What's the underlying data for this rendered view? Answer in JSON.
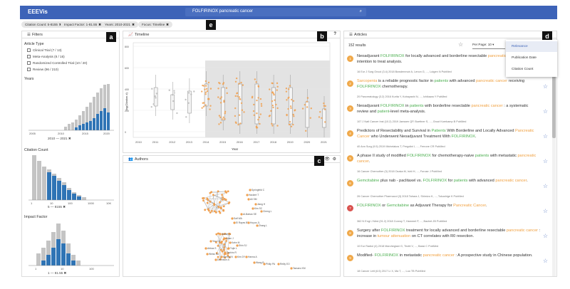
{
  "app": {
    "title": "EEEVis"
  },
  "search": {
    "query": "FOLFIRINOX pancreatic cancer"
  },
  "chips": [
    {
      "label": "Citation Count: 5-8155"
    },
    {
      "label": "Impact Factor: 1-81.55"
    },
    {
      "label": "Years: 2010-2021"
    },
    {
      "label": "Focus: Timeline"
    }
  ],
  "markers": {
    "a": "a",
    "b": "b",
    "c": "c",
    "d": "d",
    "e": "e"
  },
  "filters": {
    "title": "Filters",
    "article_type": "Article Type",
    "types": [
      "Clinical Trial (7 / 13)",
      "Meta-Analysis (8 / 16)",
      "Randomized Controlled Trial (10 / 20)",
      "Review (96 / 210)"
    ],
    "years": "Years",
    "years_axis": [
      "2005",
      "2010",
      "2015",
      "2020"
    ],
    "years_range": {
      "from": "2010",
      "to": "2021"
    },
    "citation": "Citation Count",
    "citation_axis": [
      "1",
      "10",
      "100",
      "1000",
      "10K"
    ],
    "citation_range": {
      "from": "5",
      "to": "8155"
    },
    "impact": "Impact Factor",
    "impact_axis": [
      "1",
      "10",
      "100"
    ],
    "impact_range": {
      "from": "1",
      "to": "81.55"
    }
  },
  "timeline": {
    "title": "Timeline",
    "help": "?",
    "ylabel": "log(Citation #)",
    "xlabel": "Year",
    "years": [
      "2010",
      "2011",
      "2012",
      "2013",
      "2014",
      "2015",
      "2016",
      "2017",
      "2018",
      "2019",
      "2020",
      "2021"
    ],
    "yticks": [
      "800",
      "600",
      "400",
      "200",
      "0"
    ]
  },
  "authors": {
    "title": "Authors",
    "nodes": [
      "Springfeld C",
      "Hackert T",
      "Ali SM",
      "Jiang H",
      "Kim SC",
      "Cheng L",
      "Al-Batran SE",
      "Saif WA",
      "El Rayes BF",
      "Hoyos JL",
      "Zhang L",
      "Vianey L",
      "Guan J",
      "Kahn M",
      "Shin SJ",
      "Tujie L",
      "Tashiro R",
      "Ahmed N",
      "Kim DY",
      "Hanna A",
      "Wang B",
      "Philip PA",
      "Reilly EO",
      "Tamaeo KM",
      "Yeo CH",
      "Abbas S",
      "Weiss MJ",
      "Dennison A"
    ]
  },
  "articles": {
    "title": "Articles",
    "count": "152 results",
    "per_page": "Per Page: 10",
    "sort_options": [
      "Relevance",
      "Publication Date",
      "Citation Count"
    ],
    "sort_selected": "Relevance",
    "items": [
      {
        "n": "1",
        "red": false,
        "title": [
          [
            "",
            "Neoadjuvant "
          ],
          [
            "hl",
            "FOLFIRINOX"
          ],
          [
            "",
            " for locally advanced and borderline resectable "
          ],
          [
            "og",
            "pancreatic cancer"
          ],
          [
            "",
            " : An intention to treat analysis."
          ]
        ],
        "meta": "16   Eur J Surg Oncol (3.4)   2018   Bowdenmoir A, Lenon G, ..., Lutgen N   PubMed"
      },
      {
        "n": "2",
        "red": false,
        "title": [
          [
            "og",
            "Sarcopenia"
          ],
          [
            "",
            " is a reliable prognostic factor in "
          ],
          [
            "hl",
            "patients"
          ],
          [
            "",
            " with advanced "
          ],
          [
            "og",
            "pancreatic cancer"
          ],
          [
            "",
            " receiving "
          ],
          [
            "hl",
            "FOLFIRINOX"
          ],
          [
            "",
            " chemotherapy."
          ]
        ],
        "meta": "20   Pancreatology (3.2)   2016   Kurita Y, Kobayashi N, ..., Ichikawa Y   PubMed"
      },
      {
        "n": "3",
        "red": false,
        "title": [
          [
            "",
            "Neoadjuvant "
          ],
          [
            "hl",
            "FOLFIRINOX"
          ],
          [
            "",
            " in "
          ],
          [
            "hl",
            "patients"
          ],
          [
            "",
            " with borderline resectable "
          ],
          [
            "og",
            "pancreatic cancer"
          ],
          [
            "",
            " : a systematic review and "
          ],
          [
            "hl",
            "patient"
          ],
          [
            "",
            "-level meta-analysis."
          ]
        ],
        "meta": "107   J Natl Cancer Inst (10.2)   2019   Janssen QP, Buettner S, ..., Groot Koerkamp B   PubMed"
      },
      {
        "n": "4",
        "red": false,
        "title": [
          [
            "",
            "Predictors of Resectability and Survival in "
          ],
          [
            "hl",
            "Patients"
          ],
          [
            "",
            " With Borderline and Locally Advanced "
          ],
          [
            "og",
            "Pancreatic Cancer"
          ],
          [
            "",
            " who Underwent Neoadjuvant Treatment With "
          ],
          [
            "hl",
            "FOLFIRINOX"
          ],
          [
            "",
            "."
          ]
        ],
        "meta": "40   Ann Surg (9.5)   2019   Michelakos T, Pergolini I, ..., Ferrone CR   PubMed"
      },
      {
        "n": "5",
        "red": false,
        "title": [
          [
            "",
            "A phase II study of modified "
          ],
          [
            "hl",
            "FOLFIRINOX"
          ],
          [
            "",
            " for chemotherapy-naive "
          ],
          [
            "hl",
            "patients"
          ],
          [
            "",
            " with metastatic "
          ],
          [
            "og",
            "pancreatic cancer"
          ],
          [
            "",
            "."
          ]
        ],
        "meta": "16   Cancer Chemother (3)   2018   Ozaka M, Ishii H, ..., Furuse J   PubMed"
      },
      {
        "n": "6",
        "red": false,
        "title": [
          [
            "hl",
            "Gemcitabine"
          ],
          [
            "",
            " plus nab - paclitaxel vs. "
          ],
          [
            "hl",
            "FOLFIRINOX"
          ],
          [
            "",
            " for "
          ],
          [
            "hl",
            "patients"
          ],
          [
            "",
            " with advanced "
          ],
          [
            "og",
            "pancreatic cancer"
          ],
          [
            "",
            "."
          ]
        ],
        "meta": "26   Cancer Chemother Pharmacol (3)   2018   Tahara J, Shimizu K, ..., Tokushige K   PubMed"
      },
      {
        "n": "7",
        "red": true,
        "title": [
          [
            "hl",
            "FOLFIRINOX"
          ],
          [
            "",
            " or "
          ],
          [
            "hl",
            "Gemcitabine"
          ],
          [
            "",
            " as Adjuvant Therapy for "
          ],
          [
            "og",
            "Pancreatic Cancer"
          ],
          [
            "",
            "."
          ]
        ],
        "meta": "362   N Engl J Med (91.2)   2018   Conroy T, Hammel P, ..., Bachet JB   PubMed"
      },
      {
        "n": "8",
        "red": false,
        "title": [
          [
            "",
            "Surgery after "
          ],
          [
            "hl",
            "FOLFIRINOX"
          ],
          [
            "",
            " treatment for locally advanced and borderline resectable "
          ],
          [
            "og",
            "pancreatic cancer"
          ],
          [
            "",
            " : increase in "
          ],
          [
            "og",
            "tumour attenuation"
          ],
          [
            "",
            " on CT correlates with R0 resection."
          ]
        ],
        "meta": "10   Eur Radiol (4)   2018   Marchegiani G, Tirotti V, ..., Bassi C   PubMed"
      },
      {
        "n": "9",
        "red": false,
        "title": [
          [
            "",
            "Modified- "
          ],
          [
            "hl",
            "FOLFIRINOX"
          ],
          [
            "",
            " in metastatic "
          ],
          [
            "og",
            "pancreatic cancer"
          ],
          [
            "",
            " : A prospective study in Chinese population."
          ]
        ],
        "meta": "18   Cancer Lett (6.5)   2017   Li X, Ma T, ..., Luo TB   PubMed"
      }
    ]
  }
}
